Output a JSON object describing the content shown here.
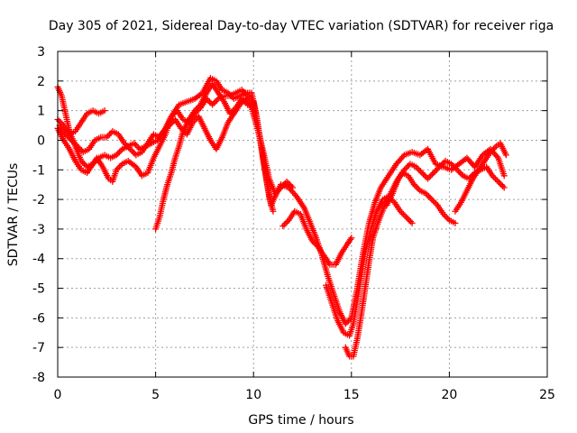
{
  "chart_data": {
    "type": "scatter",
    "title": "Day 305 of 2021, Sidereal Day-to-day VTEC variation (SDTVAR) for receiver riga",
    "xlabel": "GPS time / hours",
    "ylabel": "SDTVAR / TECUs",
    "xlim": [
      0,
      25
    ],
    "ylim": [
      -8,
      3
    ],
    "x_ticks": [
      0,
      5,
      10,
      15,
      20,
      25
    ],
    "y_ticks": [
      -8,
      -7,
      -6,
      -5,
      -4,
      -3,
      -2,
      -1,
      0,
      1,
      2,
      3
    ],
    "grid": true,
    "marker": "+",
    "colors": {
      "series": "#ff0000",
      "grid": "#a0a0a0",
      "axis": "#000000"
    },
    "series": [
      {
        "name": "track-1",
        "points": [
          [
            0.0,
            1.8
          ],
          [
            0.2,
            1.5
          ],
          [
            0.4,
            0.9
          ],
          [
            0.6,
            0.3
          ],
          [
            0.9,
            -0.2
          ],
          [
            1.2,
            -0.7
          ],
          [
            1.5,
            -0.9
          ],
          [
            1.8,
            -0.8
          ],
          [
            2.0,
            -0.6
          ],
          [
            2.3,
            -0.9
          ],
          [
            2.6,
            -1.3
          ],
          [
            2.8,
            -1.4
          ],
          [
            3.0,
            -1.0
          ],
          [
            3.3,
            -0.8
          ],
          [
            3.6,
            -0.7
          ],
          [
            4.0,
            -0.9
          ],
          [
            4.3,
            -1.2
          ],
          [
            4.6,
            -1.1
          ],
          [
            4.9,
            -0.6
          ],
          [
            5.2,
            -0.2
          ],
          [
            5.5,
            0.2
          ],
          [
            5.8,
            0.8
          ],
          [
            6.2,
            1.2
          ],
          [
            6.6,
            1.3
          ],
          [
            7.0,
            1.4
          ],
          [
            7.4,
            1.6
          ],
          [
            7.8,
            2.1
          ],
          [
            8.1,
            2.0
          ],
          [
            8.4,
            1.7
          ],
          [
            8.7,
            1.6
          ],
          [
            9.0,
            1.4
          ],
          [
            9.3,
            1.5
          ],
          [
            9.6,
            1.6
          ],
          [
            9.9,
            1.6
          ],
          [
            10.1,
            1.0
          ],
          [
            10.3,
            0.2
          ],
          [
            10.5,
            -0.7
          ],
          [
            10.7,
            -1.5
          ],
          [
            10.9,
            -2.2
          ],
          [
            11.1,
            -1.9
          ],
          [
            11.4,
            -1.5
          ],
          [
            11.8,
            -1.6
          ],
          [
            12.2,
            -1.9
          ],
          [
            12.6,
            -2.3
          ],
          [
            12.9,
            -2.8
          ],
          [
            13.2,
            -3.3
          ],
          [
            13.5,
            -3.9
          ],
          [
            13.8,
            -4.6
          ],
          [
            14.1,
            -5.2
          ],
          [
            14.4,
            -5.8
          ],
          [
            14.7,
            -6.2
          ],
          [
            15.0,
            -6.0
          ],
          [
            15.3,
            -5.0
          ],
          [
            15.6,
            -3.8
          ],
          [
            15.9,
            -2.8
          ],
          [
            16.2,
            -2.1
          ],
          [
            16.5,
            -1.6
          ],
          [
            16.9,
            -1.2
          ],
          [
            17.3,
            -0.8
          ],
          [
            17.7,
            -0.5
          ],
          [
            18.1,
            -0.4
          ],
          [
            18.5,
            -0.5
          ],
          [
            18.9,
            -0.3
          ],
          [
            19.3,
            -0.8
          ],
          [
            19.7,
            -0.9
          ],
          [
            20.1,
            -1.0
          ],
          [
            20.5,
            -0.8
          ],
          [
            20.9,
            -0.6
          ],
          [
            21.3,
            -0.9
          ],
          [
            21.7,
            -0.5
          ],
          [
            22.1,
            -0.3
          ],
          [
            22.5,
            -0.6
          ],
          [
            22.8,
            -1.2
          ]
        ]
      },
      {
        "name": "track-2",
        "points": [
          [
            0.0,
            0.7
          ],
          [
            0.3,
            0.5
          ],
          [
            0.6,
            0.2
          ],
          [
            0.9,
            0.3
          ],
          [
            1.2,
            0.6
          ],
          [
            1.5,
            0.9
          ],
          [
            1.8,
            1.0
          ],
          [
            2.1,
            0.9
          ],
          [
            2.4,
            1.0
          ]
        ]
      },
      {
        "name": "track-3",
        "points": [
          [
            0.1,
            0.5
          ],
          [
            0.4,
            0.2
          ],
          [
            0.7,
            0.0
          ],
          [
            1.0,
            -0.2
          ],
          [
            1.3,
            -0.4
          ],
          [
            1.6,
            -0.3
          ],
          [
            1.9,
            0.0
          ],
          [
            2.2,
            0.1
          ],
          [
            2.5,
            0.1
          ],
          [
            2.8,
            0.3
          ],
          [
            3.1,
            0.2
          ],
          [
            3.4,
            -0.1
          ],
          [
            3.7,
            -0.3
          ],
          [
            4.0,
            -0.5
          ],
          [
            4.3,
            -0.4
          ],
          [
            4.6,
            -0.1
          ],
          [
            4.9,
            0.2
          ],
          [
            5.2,
            0.1
          ],
          [
            5.5,
            0.4
          ],
          [
            5.8,
            0.8
          ],
          [
            6.1,
            1.0
          ],
          [
            6.4,
            0.7
          ],
          [
            6.7,
            0.6
          ],
          [
            7.0,
            0.9
          ],
          [
            7.3,
            1.1
          ],
          [
            7.6,
            1.4
          ],
          [
            7.9,
            1.2
          ],
          [
            8.2,
            1.4
          ],
          [
            8.5,
            1.5
          ],
          [
            8.8,
            1.5
          ],
          [
            9.1,
            1.6
          ],
          [
            9.4,
            1.7
          ],
          [
            9.7,
            1.5
          ],
          [
            10.0,
            1.3
          ],
          [
            10.2,
            0.6
          ],
          [
            10.4,
            -0.2
          ],
          [
            10.6,
            -1.0
          ],
          [
            10.8,
            -1.9
          ],
          [
            11.0,
            -2.4
          ]
        ]
      },
      {
        "name": "track-4",
        "points": [
          [
            0.0,
            0.4
          ],
          [
            0.3,
            0.0
          ],
          [
            0.6,
            -0.3
          ],
          [
            0.9,
            -0.7
          ],
          [
            1.2,
            -1.0
          ],
          [
            1.5,
            -1.1
          ],
          [
            1.8,
            -0.8
          ],
          [
            2.1,
            -0.6
          ],
          [
            2.4,
            -0.5
          ],
          [
            2.7,
            -0.6
          ],
          [
            3.0,
            -0.5
          ],
          [
            3.3,
            -0.3
          ],
          [
            3.6,
            -0.2
          ],
          [
            3.9,
            -0.1
          ],
          [
            4.2,
            -0.3
          ],
          [
            4.5,
            -0.2
          ],
          [
            4.8,
            -0.1
          ],
          [
            5.1,
            0.0
          ],
          [
            5.4,
            0.3
          ],
          [
            5.7,
            0.5
          ],
          [
            6.0,
            0.7
          ],
          [
            6.3,
            0.4
          ],
          [
            6.6,
            0.2
          ],
          [
            6.9,
            0.6
          ],
          [
            7.2,
            0.8
          ],
          [
            7.5,
            0.4
          ],
          [
            7.8,
            0.0
          ],
          [
            8.1,
            -0.3
          ],
          [
            8.4,
            0.1
          ],
          [
            8.7,
            0.6
          ],
          [
            9.0,
            0.9
          ],
          [
            9.3,
            1.2
          ],
          [
            9.6,
            1.4
          ],
          [
            9.9,
            1.1
          ],
          [
            10.2,
            0.4
          ],
          [
            10.5,
            -0.4
          ],
          [
            10.8,
            -1.3
          ],
          [
            11.1,
            -1.8
          ],
          [
            11.4,
            -1.6
          ],
          [
            11.7,
            -1.4
          ],
          [
            12.0,
            -1.6
          ]
        ]
      },
      {
        "name": "track-5",
        "points": [
          [
            5.0,
            -3.0
          ],
          [
            5.2,
            -2.6
          ],
          [
            5.4,
            -2.0
          ],
          [
            5.6,
            -1.5
          ],
          [
            5.8,
            -1.1
          ],
          [
            6.0,
            -0.6
          ],
          [
            6.2,
            -0.2
          ],
          [
            6.4,
            0.3
          ],
          [
            6.7,
            0.7
          ],
          [
            7.0,
            1.0
          ],
          [
            7.3,
            1.2
          ],
          [
            7.6,
            1.6
          ],
          [
            7.9,
            1.9
          ],
          [
            8.2,
            1.6
          ],
          [
            8.5,
            1.3
          ],
          [
            8.8,
            0.9
          ],
          [
            9.1,
            1.1
          ],
          [
            9.4,
            1.4
          ],
          [
            9.7,
            1.2
          ]
        ]
      },
      {
        "name": "track-6",
        "points": [
          [
            11.5,
            -2.9
          ],
          [
            11.8,
            -2.7
          ],
          [
            12.1,
            -2.4
          ],
          [
            12.4,
            -2.5
          ],
          [
            12.7,
            -3.0
          ],
          [
            13.0,
            -3.4
          ],
          [
            13.3,
            -3.6
          ],
          [
            13.6,
            -3.9
          ],
          [
            13.9,
            -4.2
          ],
          [
            14.2,
            -4.2
          ],
          [
            14.5,
            -3.8
          ],
          [
            14.8,
            -3.5
          ],
          [
            15.0,
            -3.3
          ]
        ]
      },
      {
        "name": "track-7",
        "points": [
          [
            13.7,
            -4.9
          ],
          [
            14.0,
            -5.5
          ],
          [
            14.3,
            -6.1
          ],
          [
            14.6,
            -6.5
          ],
          [
            14.9,
            -6.6
          ],
          [
            15.1,
            -6.2
          ],
          [
            15.3,
            -5.4
          ],
          [
            15.5,
            -4.6
          ],
          [
            15.7,
            -3.8
          ],
          [
            16.0,
            -3.0
          ],
          [
            16.3,
            -2.4
          ],
          [
            16.6,
            -2.0
          ],
          [
            16.9,
            -1.9
          ],
          [
            17.2,
            -2.1
          ],
          [
            17.5,
            -2.4
          ],
          [
            17.8,
            -2.6
          ],
          [
            18.1,
            -2.8
          ]
        ]
      },
      {
        "name": "track-8",
        "points": [
          [
            14.7,
            -7.0
          ],
          [
            14.9,
            -7.3
          ],
          [
            15.1,
            -7.3
          ],
          [
            15.3,
            -6.7
          ],
          [
            15.5,
            -5.9
          ],
          [
            15.7,
            -5.0
          ],
          [
            15.9,
            -4.1
          ],
          [
            16.1,
            -3.3
          ],
          [
            16.4,
            -2.7
          ],
          [
            16.7,
            -2.2
          ],
          [
            17.0,
            -1.8
          ],
          [
            17.3,
            -1.4
          ],
          [
            17.6,
            -1.1
          ],
          [
            17.9,
            -1.2
          ],
          [
            18.2,
            -1.5
          ],
          [
            18.5,
            -1.7
          ],
          [
            18.8,
            -1.8
          ],
          [
            19.1,
            -2.0
          ],
          [
            19.4,
            -2.2
          ],
          [
            19.7,
            -2.5
          ],
          [
            20.0,
            -2.7
          ],
          [
            20.3,
            -2.8
          ]
        ]
      },
      {
        "name": "track-9",
        "points": [
          [
            16.8,
            -2.2
          ],
          [
            17.1,
            -1.8
          ],
          [
            17.4,
            -1.3
          ],
          [
            17.7,
            -1.0
          ],
          [
            18.0,
            -0.8
          ],
          [
            18.3,
            -0.9
          ],
          [
            18.6,
            -1.1
          ],
          [
            18.9,
            -1.3
          ],
          [
            19.2,
            -1.1
          ],
          [
            19.5,
            -0.9
          ],
          [
            19.8,
            -0.7
          ],
          [
            20.1,
            -0.8
          ],
          [
            20.4,
            -1.0
          ],
          [
            20.7,
            -1.2
          ],
          [
            21.0,
            -1.3
          ],
          [
            21.3,
            -1.1
          ],
          [
            21.6,
            -1.0
          ],
          [
            21.9,
            -0.9
          ],
          [
            22.2,
            -1.2
          ],
          [
            22.5,
            -1.4
          ],
          [
            22.8,
            -1.6
          ]
        ]
      },
      {
        "name": "track-10",
        "points": [
          [
            20.3,
            -2.4
          ],
          [
            20.6,
            -2.1
          ],
          [
            20.9,
            -1.7
          ],
          [
            21.2,
            -1.3
          ],
          [
            21.5,
            -1.0
          ],
          [
            21.8,
            -0.7
          ],
          [
            22.1,
            -0.4
          ],
          [
            22.4,
            -0.2
          ],
          [
            22.6,
            -0.1
          ],
          [
            22.9,
            -0.5
          ]
        ]
      }
    ]
  }
}
